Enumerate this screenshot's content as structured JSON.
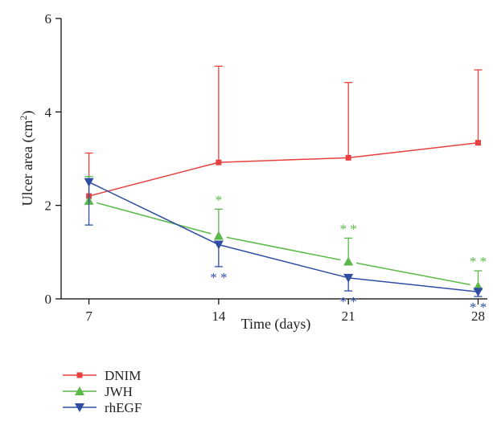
{
  "chart_data": {
    "type": "line",
    "title": "",
    "xlabel": "Time (days)",
    "ylabel_main": "Ulcer area (cm",
    "ylabel_sup": "2",
    "ylabel_tail": ")",
    "x": [
      7,
      14,
      21,
      28
    ],
    "x_ticks": [
      "7",
      "14",
      "21",
      "28"
    ],
    "y_ticks": [
      "0",
      "2",
      "4",
      "6"
    ],
    "xlim": [
      5.5,
      28.5
    ],
    "ylim": [
      0,
      6
    ],
    "grid": false,
    "legend_position": "bottom-left",
    "series": [
      {
        "name": "DNIM",
        "color": "#e8403f",
        "marker": "square",
        "values": [
          2.2,
          2.92,
          3.02,
          3.34
        ],
        "error_upper": [
          3.12,
          4.98,
          4.63,
          4.9
        ],
        "error_lower": [
          null,
          null,
          null,
          null
        ],
        "significance": [
          "",
          "",
          "",
          ""
        ]
      },
      {
        "name": "JWH",
        "color": "#5ab948",
        "marker": "triangle-up",
        "values": [
          2.1,
          1.35,
          0.8,
          0.27
        ],
        "error_upper": [
          2.62,
          1.92,
          1.3,
          0.6
        ],
        "error_lower": [
          null,
          null,
          null,
          null
        ],
        "significance": [
          "",
          "*",
          "* *",
          "* *"
        ]
      },
      {
        "name": "rhEGF",
        "color": "#2e4ea2",
        "marker": "triangle-down",
        "values": [
          2.5,
          1.16,
          0.45,
          0.15
        ],
        "error_upper": [
          null,
          null,
          null,
          null
        ],
        "error_lower": [
          1.58,
          0.69,
          0.17,
          0.05
        ],
        "significance": [
          "",
          "* *",
          "* *",
          "* *"
        ]
      }
    ]
  }
}
